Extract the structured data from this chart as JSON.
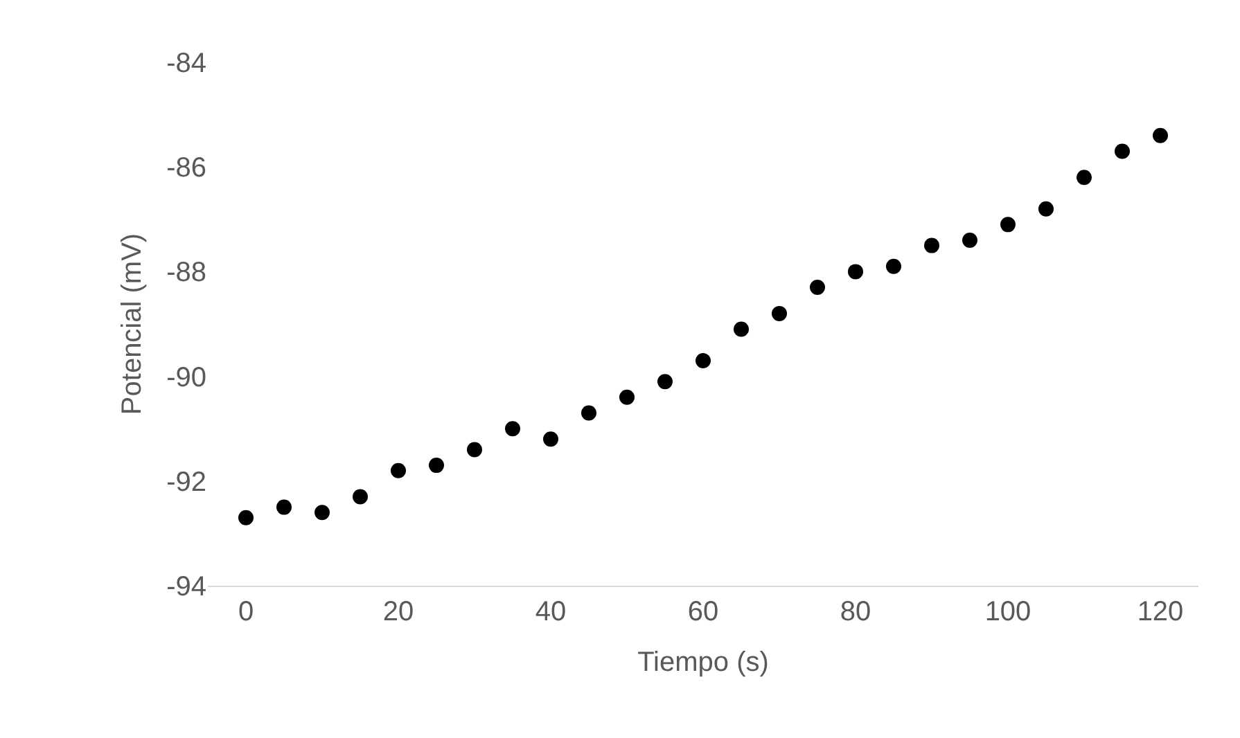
{
  "chart_data": {
    "type": "scatter",
    "xlabel": "Tiempo (s)",
    "ylabel": "Potencial (mV)",
    "x": [
      0,
      5,
      10,
      15,
      20,
      25,
      30,
      35,
      40,
      45,
      50,
      55,
      60,
      65,
      70,
      75,
      80,
      85,
      90,
      95,
      100,
      105,
      110,
      115,
      120
    ],
    "series": [
      {
        "color": "#000000",
        "values": [
          -92.7,
          -92.5,
          -92.6,
          -92.3,
          -91.8,
          -91.7,
          -91.4,
          -91.0,
          -91.2,
          -90.7,
          -90.4,
          -90.1,
          -89.7,
          -89.1,
          -88.8,
          -88.3,
          -88.0,
          -87.9,
          -87.5,
          -87.4,
          -87.1,
          -86.8,
          -86.2,
          -85.7,
          -85.4
        ]
      }
    ],
    "xlim": [
      -5,
      125
    ],
    "xticks": [
      0,
      20,
      40,
      60,
      80,
      100,
      120
    ],
    "ylim": [
      -94,
      -84
    ],
    "yticks": [
      -94,
      -92,
      -90,
      -88,
      -86,
      -84
    ],
    "grid": false,
    "marker": "circle"
  }
}
